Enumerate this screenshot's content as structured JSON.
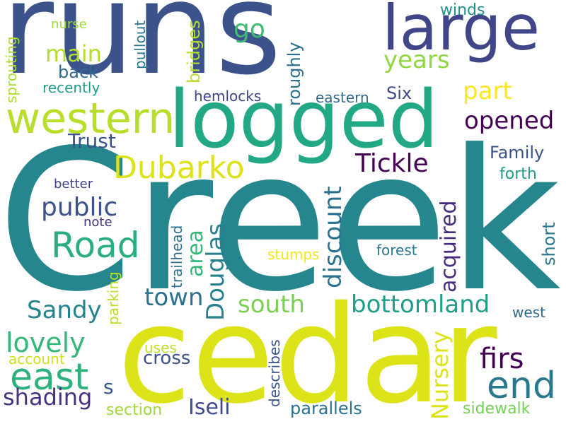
{
  "words": {
    "creek": {
      "text": "Creek",
      "color": "#26868e"
    },
    "runs": {
      "text": "runs",
      "color": "#3b528b"
    },
    "cedar": {
      "text": "cedar",
      "color": "#dce319"
    },
    "logged": {
      "text": "logged",
      "color": "#22a884"
    },
    "large": {
      "text": "large",
      "color": "#404688"
    },
    "western": {
      "text": "western",
      "color": "#b8de29"
    },
    "end": {
      "text": "end",
      "color": "#2a788e"
    },
    "east": {
      "text": "east",
      "color": "#2db27d"
    },
    "dubarko": {
      "text": "Dubarko",
      "color": "#dde318"
    },
    "road": {
      "text": "Road",
      "color": "#29af7f"
    },
    "tickle": {
      "text": "Tickle",
      "color": "#440154"
    },
    "public": {
      "text": "public",
      "color": "#3b528b"
    },
    "bottomland": {
      "text": "bottomland",
      "color": "#1f9e89"
    },
    "douglas": {
      "text": "Douglas",
      "color": "#27808e"
    },
    "lovely": {
      "text": "lovely",
      "color": "#35b779"
    },
    "sandy": {
      "text": "Sandy",
      "color": "#25838e"
    },
    "town": {
      "text": "town",
      "color": "#2c728e"
    },
    "south": {
      "text": "south",
      "color": "#7ad151"
    },
    "opened": {
      "text": "opened",
      "color": "#440154"
    },
    "firs": {
      "text": "firs",
      "color": "#440154"
    },
    "part": {
      "text": "part",
      "color": "#fde725"
    },
    "years": {
      "text": "years",
      "color": "#8fd744"
    },
    "main": {
      "text": "main",
      "color": "#b5de2b"
    },
    "shading": {
      "text": "shading",
      "color": "#46327e"
    },
    "go": {
      "text": "go",
      "color": "#3fbc73"
    },
    "area": {
      "text": "area",
      "color": "#35b779"
    },
    "discount": {
      "text": "discount",
      "color": "#2c728e"
    },
    "acquired": {
      "text": "acquired",
      "color": "#472d7b"
    },
    "nursery": {
      "text": "Nursery",
      "color": "#dce319"
    },
    "iseli": {
      "text": "Iseli",
      "color": "#3e4a89"
    },
    "family": {
      "text": "Family",
      "color": "#3b528b"
    },
    "trust": {
      "text": "Trust",
      "color": "#3b528b"
    },
    "six": {
      "text": "Six",
      "color": "#3e4989"
    },
    "roughly": {
      "text": "roughly",
      "color": "#2d708e"
    },
    "bridges": {
      "text": "bridges",
      "color": "#b5de2b"
    },
    "back": {
      "text": "back",
      "color": "#31688e"
    },
    "forth": {
      "text": "forth",
      "color": "#1f9e89"
    },
    "short": {
      "text": "short",
      "color": "#2a788e"
    },
    "s": {
      "text": "s",
      "color": "#38588c"
    },
    "cross": {
      "text": "cross",
      "color": "#3b528b"
    },
    "parallels": {
      "text": "parallels",
      "color": "#2c728e"
    },
    "sidewalk": {
      "text": "sidewalk",
      "color": "#73d056"
    },
    "section": {
      "text": "section",
      "color": "#a0da39"
    },
    "winds": {
      "text": "winds",
      "color": "#20928c"
    },
    "hemlocks": {
      "text": "hemlocks",
      "color": "#414487"
    },
    "eastern": {
      "text": "eastern",
      "color": "#31688e"
    },
    "recently": {
      "text": "recently",
      "color": "#1f9e89"
    },
    "nurse": {
      "text": "nurse",
      "color": "#a0da39"
    },
    "sprouting": {
      "text": "sprouting",
      "color": "#addc30"
    },
    "pullout": {
      "text": "pullout",
      "color": "#2a788e"
    },
    "better": {
      "text": "better",
      "color": "#414487"
    },
    "note": {
      "text": "note",
      "color": "#46337e"
    },
    "trailhead": {
      "text": "trailhead",
      "color": "#2d708e"
    },
    "stumps": {
      "text": "stumps",
      "color": "#f3e51e"
    },
    "forest": {
      "text": "forest",
      "color": "#2a788e"
    },
    "parking": {
      "text": "parking",
      "color": "#b8de29"
    },
    "uses": {
      "text": "uses",
      "color": "#bddf26"
    },
    "account": {
      "text": "account",
      "color": "#cde11d"
    },
    "describes": {
      "text": "describes",
      "color": "#3b528b"
    },
    "west": {
      "text": "west",
      "color": "#31688e"
    }
  }
}
